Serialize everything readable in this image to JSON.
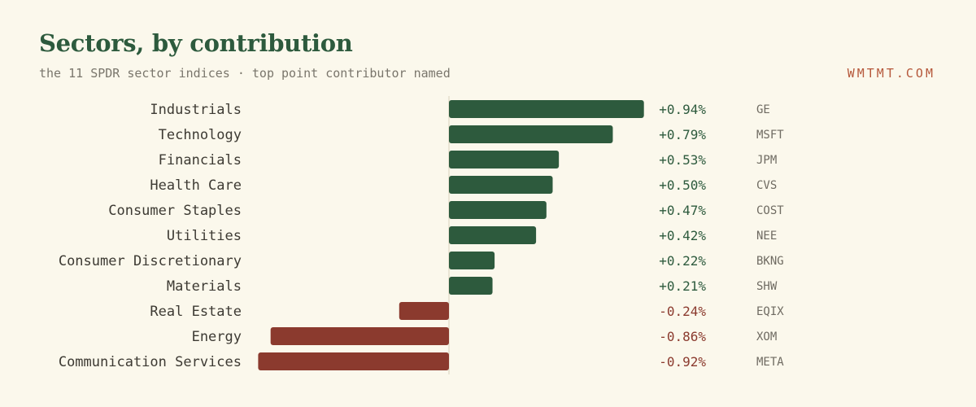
{
  "header": {
    "title": "Sectors, by contribution",
    "subtitle": "the 11 SPDR sector indices · top point contributor named",
    "brand": "WMTMT.COM"
  },
  "chart_data": {
    "type": "bar",
    "orientation": "horizontal",
    "title": "Sectors, by contribution",
    "subtitle": "the 11 SPDR sector indices · top point contributor named",
    "unit": "%",
    "categories": [
      "Industrials",
      "Technology",
      "Financials",
      "Health Care",
      "Consumer Staples",
      "Utilities",
      "Consumer Discretionary",
      "Materials",
      "Real Estate",
      "Energy",
      "Communication Services"
    ],
    "values": [
      0.94,
      0.79,
      0.53,
      0.5,
      0.47,
      0.42,
      0.22,
      0.21,
      -0.24,
      -0.86,
      -0.92
    ],
    "value_labels": [
      "+0.94%",
      "+0.79%",
      "+0.53%",
      "+0.50%",
      "+0.47%",
      "+0.42%",
      "+0.22%",
      "+0.21%",
      "-0.24%",
      "-0.86%",
      "-0.92%"
    ],
    "top_contributors": [
      "GE",
      "MSFT",
      "JPM",
      "CVS",
      "COST",
      "NEE",
      "BKNG",
      "SHW",
      "EQIX",
      "XOM",
      "META"
    ],
    "xlim": [
      -0.92,
      0.94
    ],
    "grid": false,
    "legend": "none",
    "colors": {
      "positive": "#2d5a3d",
      "negative": "#8b3a2e",
      "label": "#3d3a33",
      "ticker": "#6f6b62",
      "baseline": "#d8d2bd"
    }
  }
}
